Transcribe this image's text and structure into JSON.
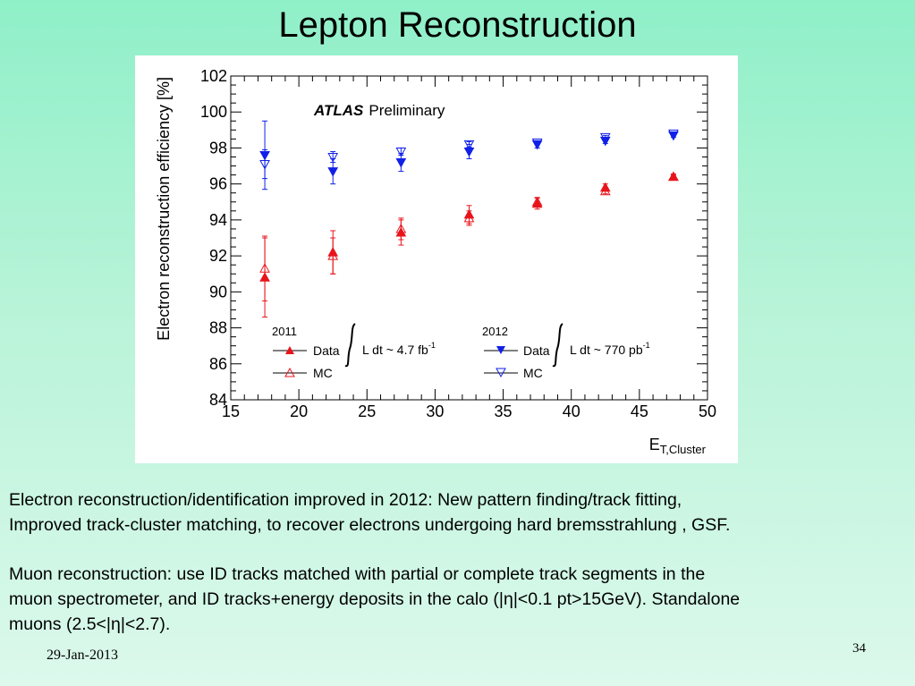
{
  "slide": {
    "title": "Lepton Reconstruction",
    "date": "29-Jan-2013",
    "page_number": "34"
  },
  "text": {
    "para1_line1": "Electron reconstruction/identification improved in 2012: New pattern finding/track fitting,",
    "para1_line2": "Improved track-cluster matching, to recover electrons undergoing hard bremsstrahlung , GSF.",
    "para2_line1": "Muon reconstruction: use ID tracks matched with partial or complete track segments in the",
    "para2_line2": "muon spectrometer, and ID tracks+energy deposits in the calo (|η|<0.1 pt>15GeV). Standalone",
    "para2_line3": "muons (2.5<|η|<2.7)."
  },
  "chart_data": {
    "type": "scatter",
    "ylabel": "Electron reconstruction efficiency [%]",
    "xlabel_main": "E",
    "xlabel_sub": "T,Cluster",
    "xlim": [
      15,
      50
    ],
    "ylim": [
      84,
      102
    ],
    "xticks": [
      15,
      20,
      25,
      30,
      35,
      40,
      45,
      50
    ],
    "yticks": [
      84,
      86,
      88,
      90,
      92,
      94,
      96,
      98,
      100,
      102
    ],
    "grid": false,
    "annotation_bold": "ATLAS",
    "annotation_normal": "Preliminary",
    "legend": {
      "placement": "bottom",
      "group_2011": "2011",
      "group_2012": "2012",
      "data_label": "Data",
      "mc_label": "MC",
      "lumi_2011": "L dt ~ 4.7 fb",
      "lumi_2012": "L dt ~ 770 pb",
      "lumi_exp": "-1"
    },
    "series": [
      {
        "name": "2011 Data",
        "marker": "triangle-up-filled",
        "color": "#e8141c",
        "x": [
          17.5,
          22.5,
          27.5,
          32.5,
          37.5,
          42.5,
          47.5
        ],
        "y": [
          90.8,
          92.2,
          93.3,
          94.3,
          94.9,
          95.8,
          96.4
        ],
        "err": [
          2.2,
          1.2,
          0.7,
          0.5,
          0.3,
          0.2,
          0.15
        ]
      },
      {
        "name": "2011 MC",
        "marker": "triangle-up-open",
        "color": "#e8141c",
        "x": [
          17.5,
          22.5,
          27.5,
          32.5,
          37.5,
          42.5,
          47.5
        ],
        "y": [
          91.3,
          92.0,
          93.5,
          94.1,
          95.0,
          95.6,
          96.4
        ],
        "err": [
          1.8,
          1.0,
          0.6,
          0.4,
          0.25,
          0.15,
          0.1
        ]
      },
      {
        "name": "2012 Data",
        "marker": "triangle-down-filled",
        "color": "#1020e8",
        "x": [
          17.5,
          22.5,
          27.5,
          32.5,
          37.5,
          42.5,
          47.5
        ],
        "y": [
          97.6,
          96.7,
          97.2,
          97.8,
          98.2,
          98.4,
          98.7
        ],
        "err": [
          1.9,
          0.7,
          0.5,
          0.4,
          0.2,
          0.15,
          0.1
        ]
      },
      {
        "name": "2012 MC",
        "marker": "triangle-down-open",
        "color": "#1020e8",
        "x": [
          17.5,
          22.5,
          27.5,
          32.5,
          37.5,
          42.5,
          47.5
        ],
        "y": [
          97.1,
          97.5,
          97.8,
          98.2,
          98.3,
          98.6,
          98.8
        ],
        "err": [
          0.8,
          0.3,
          0.2,
          0.15,
          0.1,
          0.1,
          0.05
        ]
      }
    ]
  }
}
